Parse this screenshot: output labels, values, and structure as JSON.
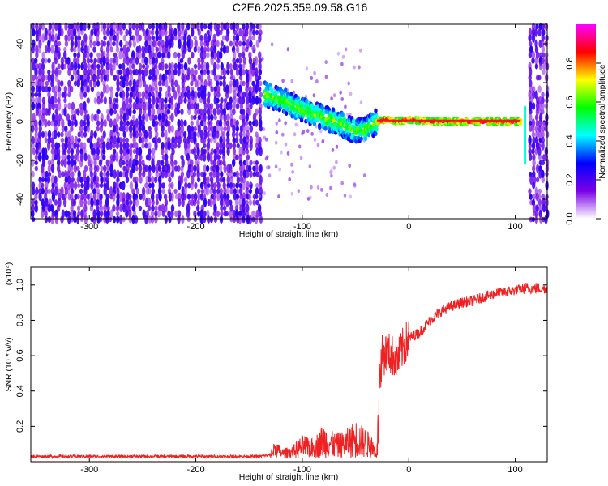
{
  "title": "C2E6.2025.359.09.58.G16",
  "chart_data": [
    {
      "type": "heatmap",
      "xlabel": "Height of straight line (km)",
      "ylabel": "Frequency (Hz)",
      "xlim": [
        -355,
        130
      ],
      "ylim": [
        -50,
        50
      ],
      "x_ticks": [
        -300,
        -200,
        -100,
        0,
        100
      ],
      "x_tick_labels": [
        "-300",
        "-200",
        "-100",
        "0",
        "100"
      ],
      "y_ticks": [
        -40,
        -20,
        0,
        20,
        40
      ],
      "y_tick_labels": [
        "-40",
        "-20",
        "0",
        "20",
        "40"
      ],
      "colorbar": {
        "label": "Normalized spectral amplitude",
        "range": [
          0,
          1
        ],
        "ticks": [
          0.0,
          0.2,
          0.4,
          0.6,
          0.8
        ],
        "tick_labels": [
          "0.0",
          "0.2",
          "0.4",
          "0.6",
          "0.8"
        ],
        "colors": [
          "#ffffff",
          "#7a00e6",
          "#0000ff",
          "#00ffff",
          "#00ff00",
          "#ffff00",
          "#ff0000",
          "#ff00ff"
        ]
      },
      "regions": [
        {
          "name": "noise-left",
          "x_range": [
            -355,
            -140
          ],
          "freq_range": [
            -50,
            50
          ],
          "amplitude": 0.2
        },
        {
          "name": "signal-track",
          "points": [
            [
              -135,
              14
            ],
            [
              -115,
              10
            ],
            [
              -100,
              6
            ],
            [
              -90,
              4
            ],
            [
              -80,
              2
            ],
            [
              -70,
              0
            ],
            [
              -60,
              -2
            ],
            [
              -50,
              -5
            ],
            [
              -40,
              -4
            ],
            [
              -30,
              0
            ],
            [
              -20,
              1
            ],
            [
              -10,
              0
            ],
            [
              0,
              1
            ],
            [
              20,
              0
            ],
            [
              60,
              0
            ],
            [
              105,
              0
            ]
          ],
          "amplitude": 0.95
        },
        {
          "name": "noise-right",
          "x_range": [
            112,
            130
          ],
          "freq_range": [
            -50,
            50
          ],
          "amplitude": 0.2
        }
      ],
      "grid": false
    },
    {
      "type": "line",
      "xlabel": "Height of straight line (km)",
      "ylabel": "SNR (10 * v/v)",
      "y_multiplier": "(x10⁴)",
      "xlim": [
        -355,
        130
      ],
      "ylim": [
        0,
        1.1
      ],
      "x_ticks": [
        -300,
        -200,
        -100,
        0,
        100
      ],
      "x_tick_labels": [
        "-300",
        "-200",
        "-100",
        "0",
        "100"
      ],
      "y_ticks": [
        0.2,
        0.4,
        0.6,
        0.8,
        1.0
      ],
      "y_tick_labels": [
        "0.2",
        "0.4",
        "0.6",
        "0.8",
        "1.0"
      ],
      "series": [
        {
          "color": "#ee2222",
          "x": [
            -355,
            -300,
            -250,
            -200,
            -150,
            -140,
            -130,
            -125,
            -120,
            -110,
            -100,
            -90,
            -80,
            -70,
            -60,
            -50,
            -40,
            -35,
            -30,
            -28,
            -25,
            -20,
            -15,
            -10,
            -5,
            0,
            10,
            20,
            30,
            40,
            50,
            60,
            70,
            80,
            90,
            100,
            110,
            120,
            130
          ],
          "y": [
            0.03,
            0.03,
            0.03,
            0.03,
            0.03,
            0.03,
            0.04,
            0.1,
            0.05,
            0.06,
            0.12,
            0.1,
            0.18,
            0.13,
            0.14,
            0.2,
            0.15,
            0.12,
            0.04,
            0.45,
            0.6,
            0.62,
            0.6,
            0.58,
            0.65,
            0.7,
            0.73,
            0.8,
            0.85,
            0.88,
            0.9,
            0.91,
            0.93,
            0.95,
            0.96,
            0.97,
            0.98,
            0.98,
            0.98
          ]
        }
      ],
      "grid": false
    }
  ]
}
